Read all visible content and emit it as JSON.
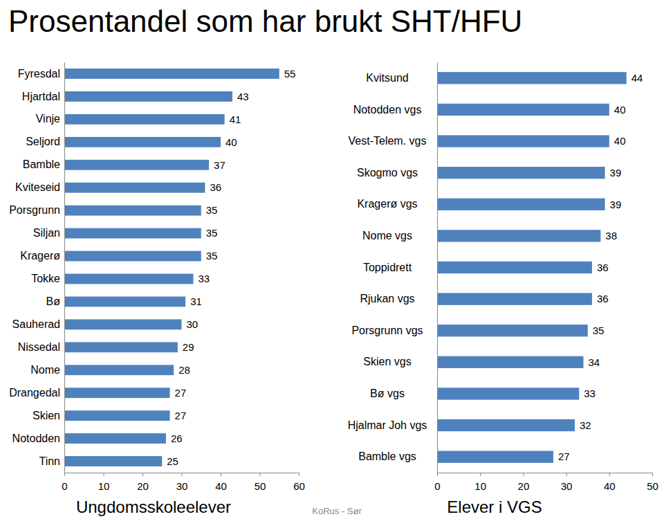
{
  "title": "Prosentandel som har brukt SHT/HFU",
  "footer": "KoRus - Sør",
  "chart_data": [
    {
      "type": "bar",
      "orientation": "horizontal",
      "data_labels": true,
      "grid": false,
      "color": "#4f81bd",
      "xlabel": "Ungdomsskoleelever",
      "categories": [
        "Fyresdal",
        "Hjartdal",
        "Vinje",
        "Seljord",
        "Bamble",
        "Kviteseid",
        "Porsgrunn",
        "Siljan",
        "Kragerø",
        "Tokke",
        "Bø",
        "Sauherad",
        "Nissedal",
        "Nome",
        "Drangedal",
        "Skien",
        "Notodden",
        "Tinn"
      ],
      "values": [
        55,
        43,
        41,
        40,
        37,
        36,
        35,
        35,
        35,
        33,
        31,
        30,
        29,
        28,
        27,
        27,
        26,
        25
      ],
      "xlim": [
        0,
        60
      ],
      "xticks": [
        0,
        10,
        20,
        30,
        40,
        50,
        60
      ]
    },
    {
      "type": "bar",
      "orientation": "horizontal",
      "data_labels": true,
      "grid": false,
      "color": "#4f81bd",
      "xlabel": "Elever i VGS",
      "categories": [
        "Kvitsund",
        "Notodden vgs",
        "Vest-Telem. vgs",
        "Skogmo vgs",
        "Kragerø vgs",
        "Nome vgs",
        "Toppidrett",
        "Rjukan vgs",
        "Porsgrunn vgs",
        "Skien vgs",
        "Bø vgs",
        "Hjalmar Joh vgs",
        "Bamble vgs"
      ],
      "values": [
        44,
        40,
        40,
        39,
        39,
        38,
        36,
        36,
        35,
        34,
        33,
        32,
        27
      ],
      "xlim": [
        0,
        50
      ],
      "xticks": [
        0,
        10,
        20,
        30,
        40,
        50
      ]
    }
  ]
}
